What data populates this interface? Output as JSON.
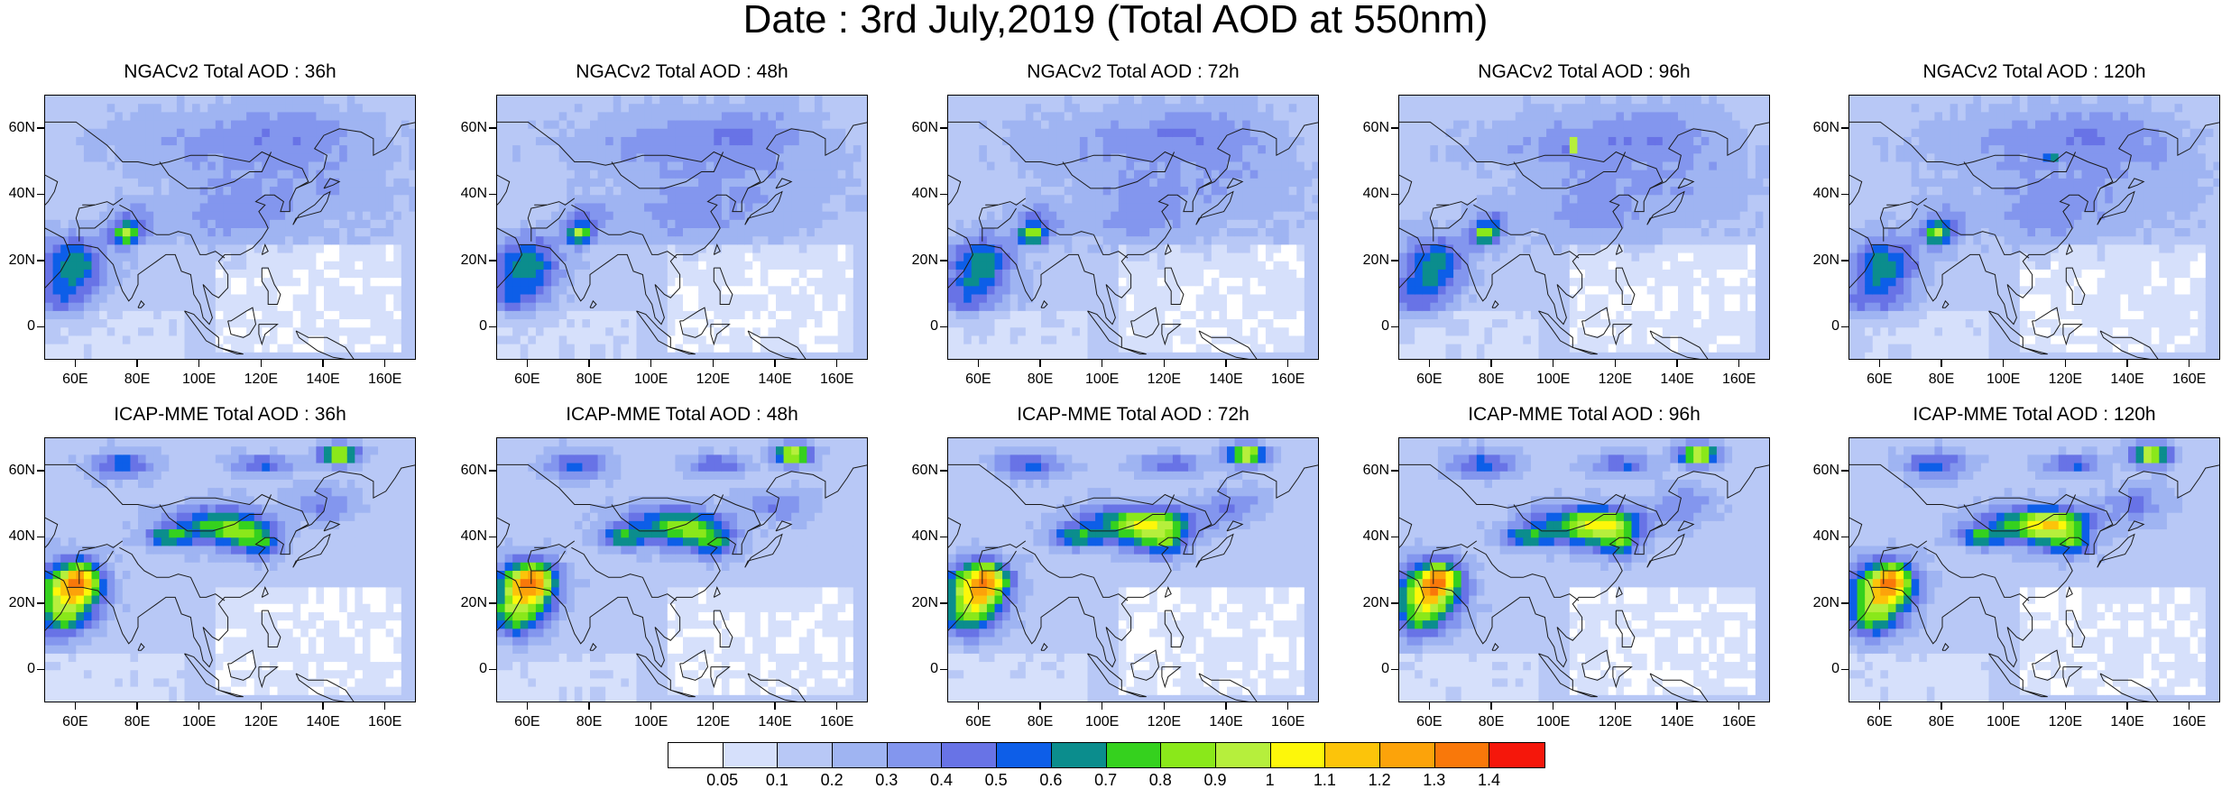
{
  "title": "Date : 3rd July,2019 (Total AOD at 550nm)",
  "axes": {
    "y_ticks": [
      "60N",
      "40N",
      "20N",
      "0"
    ],
    "x_ticks": [
      "60E",
      "80E",
      "100E",
      "120E",
      "140E",
      "160E"
    ]
  },
  "panels": [
    {
      "title": "NGACv2 Total AOD : 36h",
      "model": "NGACv2",
      "lead": "36h"
    },
    {
      "title": "NGACv2 Total AOD : 48h",
      "model": "NGACv2",
      "lead": "48h"
    },
    {
      "title": "NGACv2 Total AOD : 72h",
      "model": "NGACv2",
      "lead": "72h"
    },
    {
      "title": "NGACv2 Total AOD : 96h",
      "model": "NGACv2",
      "lead": "96h"
    },
    {
      "title": "NGACv2 Total AOD : 120h",
      "model": "NGACv2",
      "lead": "120h"
    },
    {
      "title": "ICAP-MME Total AOD : 36h",
      "model": "ICAP-MME",
      "lead": "36h"
    },
    {
      "title": "ICAP-MME Total AOD : 48h",
      "model": "ICAP-MME",
      "lead": "48h"
    },
    {
      "title": "ICAP-MME Total AOD : 72h",
      "model": "ICAP-MME",
      "lead": "72h"
    },
    {
      "title": "ICAP-MME Total AOD : 96h",
      "model": "ICAP-MME",
      "lead": "96h"
    },
    {
      "title": "ICAP-MME Total AOD : 120h",
      "model": "ICAP-MME",
      "lead": "120h"
    }
  ],
  "colorbar": {
    "labels": [
      "0.05",
      "0.1",
      "0.2",
      "0.3",
      "0.4",
      "0.5",
      "0.6",
      "0.7",
      "0.8",
      "0.9",
      "1",
      "1.1",
      "1.2",
      "1.3",
      "1.4"
    ],
    "colors": [
      "#ffffff",
      "#d6e0fb",
      "#b8c8f6",
      "#9fb4f2",
      "#8396ee",
      "#6873e6",
      "#0d5ee8",
      "#0b8d8d",
      "#35d11e",
      "#8ae81a",
      "#b6ef3c",
      "#fdf70a",
      "#fcc40a",
      "#fca30a",
      "#f9780a",
      "#f5170b"
    ]
  },
  "map_extent": {
    "lon": [
      50,
      170
    ],
    "lat": [
      -10,
      70
    ]
  }
}
